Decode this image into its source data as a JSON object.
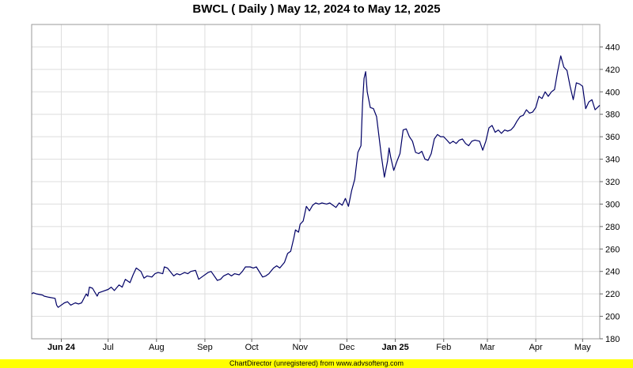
{
  "chart_data": {
    "type": "line",
    "title": "BWCL ( Daily ) May 12, 2024 to May 12, 2025",
    "xlabel": "",
    "ylabel": "",
    "ylim": [
      180,
      460
    ],
    "yticks": [
      180,
      200,
      220,
      240,
      260,
      280,
      300,
      320,
      340,
      360,
      380,
      400,
      420,
      440
    ],
    "y_axis_side": "right",
    "grid": true,
    "line_color": "#000066",
    "x_tick_labels": [
      {
        "label": "Jun 24",
        "date": "2024-06-01",
        "bold": true
      },
      {
        "label": "Jul",
        "date": "2024-07-01",
        "bold": false
      },
      {
        "label": "Aug",
        "date": "2024-08-01",
        "bold": false
      },
      {
        "label": "Sep",
        "date": "2024-09-01",
        "bold": false
      },
      {
        "label": "Oct",
        "date": "2024-10-01",
        "bold": false
      },
      {
        "label": "Nov",
        "date": "2024-11-01",
        "bold": false
      },
      {
        "label": "Dec",
        "date": "2024-12-01",
        "bold": false
      },
      {
        "label": "Jan 25",
        "date": "2025-01-01",
        "bold": true
      },
      {
        "label": "Feb",
        "date": "2025-02-01",
        "bold": false
      },
      {
        "label": "Mar",
        "date": "2025-03-01",
        "bold": false
      },
      {
        "label": "Apr",
        "date": "2025-04-01",
        "bold": false
      },
      {
        "label": "May",
        "date": "2025-05-01",
        "bold": false
      }
    ],
    "x_range": [
      "2024-05-13",
      "2025-05-12"
    ],
    "points": [
      [
        "2024-05-13",
        220
      ],
      [
        "2024-05-14",
        221
      ],
      [
        "2024-05-16",
        220
      ],
      [
        "2024-05-20",
        219
      ],
      [
        "2024-05-21",
        218
      ],
      [
        "2024-05-24",
        217
      ],
      [
        "2024-05-28",
        216
      ],
      [
        "2024-05-29",
        210
      ],
      [
        "2024-05-30",
        208
      ],
      [
        "2024-06-03",
        212
      ],
      [
        "2024-06-05",
        213
      ],
      [
        "2024-06-07",
        210
      ],
      [
        "2024-06-10",
        212
      ],
      [
        "2024-06-12",
        211
      ],
      [
        "2024-06-14",
        212
      ],
      [
        "2024-06-17",
        220
      ],
      [
        "2024-06-18",
        218
      ],
      [
        "2024-06-19",
        226
      ],
      [
        "2024-06-21",
        225
      ],
      [
        "2024-06-24",
        218
      ],
      [
        "2024-06-25",
        221
      ],
      [
        "2024-06-27",
        222
      ],
      [
        "2024-07-01",
        224
      ],
      [
        "2024-07-03",
        226
      ],
      [
        "2024-07-05",
        223
      ],
      [
        "2024-07-08",
        228
      ],
      [
        "2024-07-10",
        226
      ],
      [
        "2024-07-12",
        233
      ],
      [
        "2024-07-15",
        230
      ],
      [
        "2024-07-17",
        237
      ],
      [
        "2024-07-19",
        243
      ],
      [
        "2024-07-22",
        240
      ],
      [
        "2024-07-24",
        234
      ],
      [
        "2024-07-26",
        236
      ],
      [
        "2024-07-29",
        235
      ],
      [
        "2024-07-31",
        238
      ],
      [
        "2024-08-02",
        239
      ],
      [
        "2024-08-05",
        238
      ],
      [
        "2024-08-06",
        244
      ],
      [
        "2024-08-08",
        243
      ],
      [
        "2024-08-12",
        236
      ],
      [
        "2024-08-14",
        238
      ],
      [
        "2024-08-16",
        237
      ],
      [
        "2024-08-19",
        239
      ],
      [
        "2024-08-21",
        238
      ],
      [
        "2024-08-23",
        240
      ],
      [
        "2024-08-26",
        241
      ],
      [
        "2024-08-28",
        233
      ],
      [
        "2024-08-30",
        235
      ],
      [
        "2024-09-03",
        239
      ],
      [
        "2024-09-05",
        240
      ],
      [
        "2024-09-09",
        232
      ],
      [
        "2024-09-11",
        233
      ],
      [
        "2024-09-13",
        236
      ],
      [
        "2024-09-16",
        238
      ],
      [
        "2024-09-18",
        236
      ],
      [
        "2024-09-20",
        238
      ],
      [
        "2024-09-23",
        237
      ],
      [
        "2024-09-25",
        240
      ],
      [
        "2024-09-27",
        244
      ],
      [
        "2024-09-30",
        244
      ],
      [
        "2024-10-02",
        243
      ],
      [
        "2024-10-04",
        244
      ],
      [
        "2024-10-08",
        235
      ],
      [
        "2024-10-10",
        236
      ],
      [
        "2024-10-12",
        238
      ],
      [
        "2024-10-15",
        243
      ],
      [
        "2024-10-17",
        245
      ],
      [
        "2024-10-19",
        243
      ],
      [
        "2024-10-22",
        248
      ],
      [
        "2024-10-24",
        256
      ],
      [
        "2024-10-26",
        258
      ],
      [
        "2024-10-28",
        270
      ],
      [
        "2024-10-29",
        277
      ],
      [
        "2024-10-31",
        275
      ],
      [
        "2024-11-01",
        282
      ],
      [
        "2024-11-03",
        285
      ],
      [
        "2024-11-05",
        298
      ],
      [
        "2024-11-07",
        294
      ],
      [
        "2024-11-09",
        299
      ],
      [
        "2024-11-11",
        301
      ],
      [
        "2024-11-13",
        300
      ],
      [
        "2024-11-15",
        301
      ],
      [
        "2024-11-18",
        300
      ],
      [
        "2024-11-20",
        301
      ],
      [
        "2024-11-22",
        299
      ],
      [
        "2024-11-24",
        297
      ],
      [
        "2024-11-26",
        301
      ],
      [
        "2024-11-28",
        299
      ],
      [
        "2024-11-30",
        305
      ],
      [
        "2024-12-02",
        298
      ],
      [
        "2024-12-04",
        312
      ],
      [
        "2024-12-06",
        322
      ],
      [
        "2024-12-08",
        346
      ],
      [
        "2024-12-10",
        352
      ],
      [
        "2024-12-11",
        390
      ],
      [
        "2024-12-12",
        412
      ],
      [
        "2024-12-13",
        418
      ],
      [
        "2024-12-14",
        400
      ],
      [
        "2024-12-16",
        386
      ],
      [
        "2024-12-18",
        385
      ],
      [
        "2024-12-20",
        378
      ],
      [
        "2024-12-23",
        344
      ],
      [
        "2024-12-25",
        324
      ],
      [
        "2024-12-27",
        338
      ],
      [
        "2024-12-28",
        350
      ],
      [
        "2024-12-29",
        342
      ],
      [
        "2024-12-31",
        330
      ],
      [
        "2025-01-02",
        338
      ],
      [
        "2025-01-04",
        345
      ],
      [
        "2025-01-06",
        366
      ],
      [
        "2025-01-08",
        367
      ],
      [
        "2025-01-10",
        360
      ],
      [
        "2025-01-12",
        356
      ],
      [
        "2025-01-14",
        346
      ],
      [
        "2025-01-16",
        345
      ],
      [
        "2025-01-18",
        347
      ],
      [
        "2025-01-20",
        340
      ],
      [
        "2025-01-22",
        339
      ],
      [
        "2025-01-24",
        345
      ],
      [
        "2025-01-26",
        358
      ],
      [
        "2025-01-28",
        362
      ],
      [
        "2025-01-30",
        360
      ],
      [
        "2025-02-01",
        360
      ],
      [
        "2025-02-03",
        357
      ],
      [
        "2025-02-05",
        354
      ],
      [
        "2025-02-07",
        356
      ],
      [
        "2025-02-09",
        354
      ],
      [
        "2025-02-11",
        357
      ],
      [
        "2025-02-13",
        358
      ],
      [
        "2025-02-15",
        354
      ],
      [
        "2025-02-17",
        352
      ],
      [
        "2025-02-19",
        356
      ],
      [
        "2025-02-21",
        357
      ],
      [
        "2025-02-24",
        356
      ],
      [
        "2025-02-26",
        348
      ],
      [
        "2025-02-28",
        356
      ],
      [
        "2025-03-02",
        368
      ],
      [
        "2025-03-04",
        370
      ],
      [
        "2025-03-06",
        364
      ],
      [
        "2025-03-08",
        366
      ],
      [
        "2025-03-10",
        363
      ],
      [
        "2025-03-12",
        366
      ],
      [
        "2025-03-14",
        365
      ],
      [
        "2025-03-16",
        366
      ],
      [
        "2025-03-18",
        369
      ],
      [
        "2025-03-20",
        374
      ],
      [
        "2025-03-22",
        378
      ],
      [
        "2025-03-24",
        379
      ],
      [
        "2025-03-26",
        384
      ],
      [
        "2025-03-28",
        381
      ],
      [
        "2025-03-30",
        382
      ],
      [
        "2025-04-01",
        386
      ],
      [
        "2025-04-03",
        396
      ],
      [
        "2025-04-05",
        394
      ],
      [
        "2025-04-07",
        400
      ],
      [
        "2025-04-09",
        396
      ],
      [
        "2025-04-11",
        400
      ],
      [
        "2025-04-13",
        402
      ],
      [
        "2025-04-15",
        418
      ],
      [
        "2025-04-17",
        432
      ],
      [
        "2025-04-19",
        422
      ],
      [
        "2025-04-21",
        419
      ],
      [
        "2025-04-23",
        405
      ],
      [
        "2025-04-25",
        393
      ],
      [
        "2025-04-27",
        408
      ],
      [
        "2025-04-29",
        407
      ],
      [
        "2025-05-01",
        405
      ],
      [
        "2025-05-03",
        385
      ],
      [
        "2025-05-05",
        391
      ],
      [
        "2025-05-07",
        393
      ],
      [
        "2025-05-09",
        384
      ],
      [
        "2025-05-12",
        388
      ]
    ]
  },
  "footer_text": "ChartDirector (unregistered) from www.advsofteng.com"
}
